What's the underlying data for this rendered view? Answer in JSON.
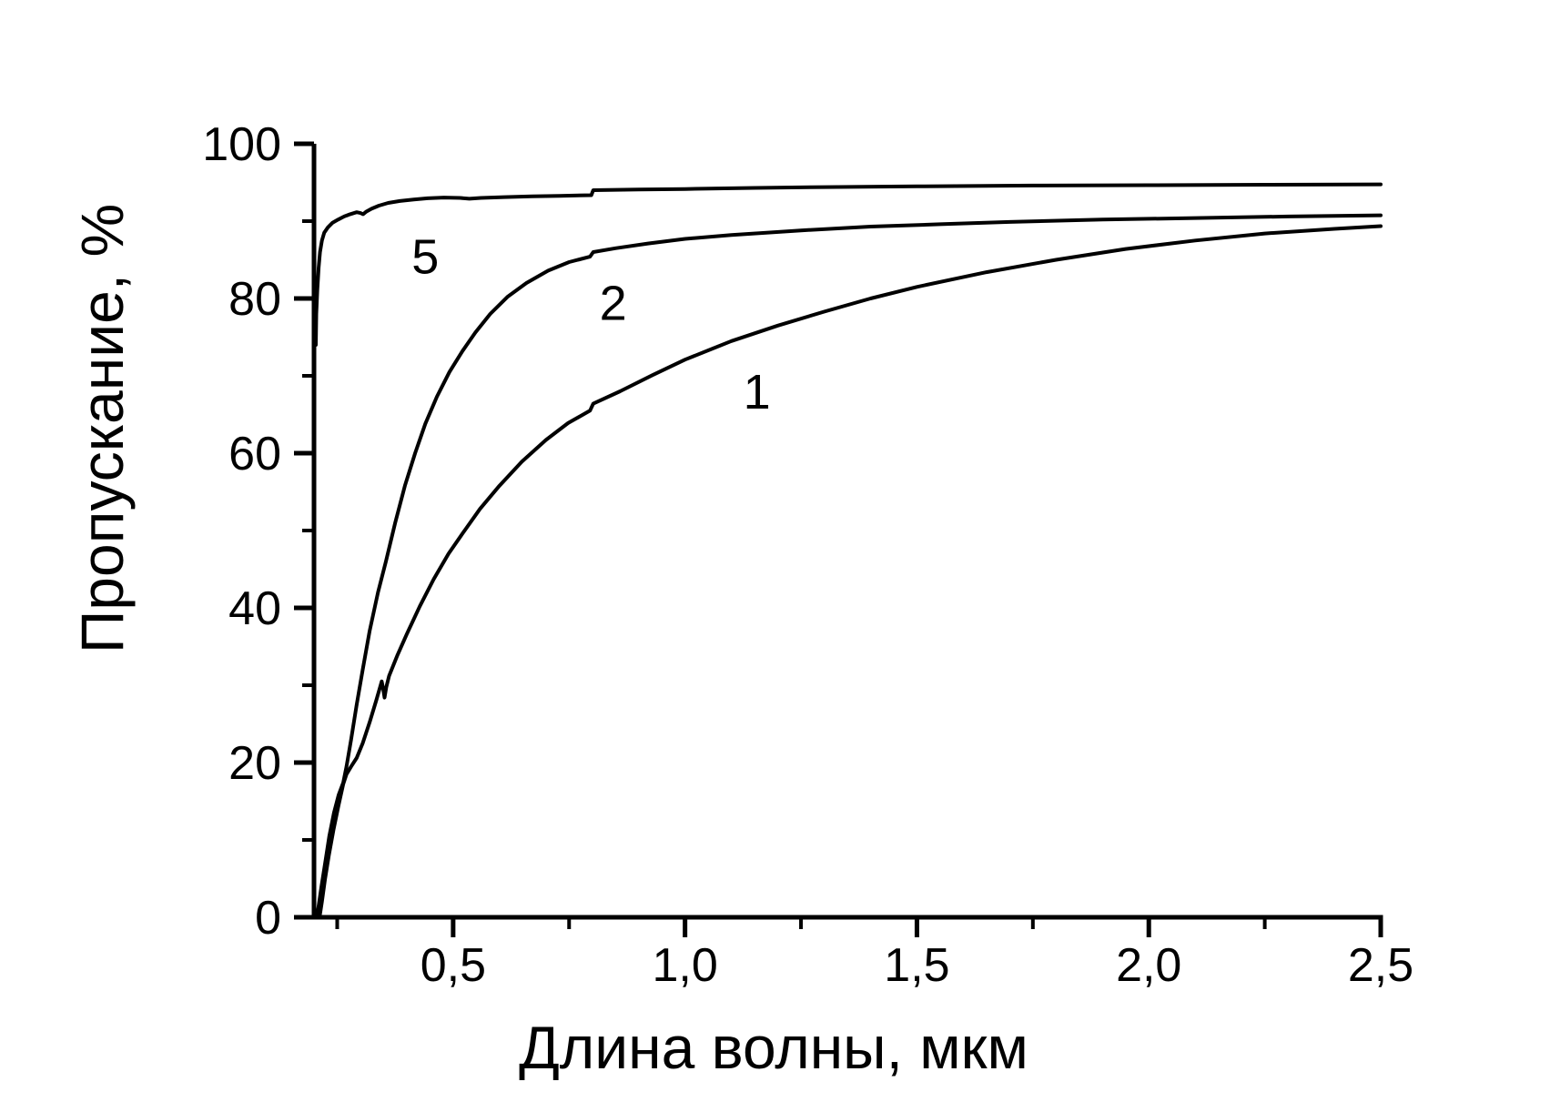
{
  "chart_data": {
    "type": "line",
    "title": "",
    "xlabel": "Длина волны, мкм",
    "ylabel": "Пропускание, %",
    "xlim": [
      0.2,
      2.5
    ],
    "ylim": [
      0,
      100
    ],
    "grid": false,
    "legend": "none",
    "background_color": "#ffffff",
    "axis_color": "#000000",
    "curve_color": "#000000",
    "x_major_ticks": [
      0.5,
      1.0,
      1.5,
      2.0,
      2.5
    ],
    "x_major_tick_labels": [
      "0,5",
      "1,0",
      "1,5",
      "2,0",
      "2,5"
    ],
    "x_minor_ticks": [
      0.25,
      0.75,
      1.25,
      1.75,
      2.25
    ],
    "y_major_ticks": [
      0,
      20,
      40,
      60,
      80,
      100
    ],
    "y_major_tick_labels": [
      "0",
      "20",
      "40",
      "60",
      "80",
      "100"
    ],
    "y_minor_ticks": [
      10,
      30,
      50,
      70,
      90
    ],
    "series": [
      {
        "name": "curve-5",
        "label": "5",
        "label_pos": [
          0.44,
          85.5
        ],
        "points": [
          [
            0.204,
            74
          ],
          [
            0.205,
            78
          ],
          [
            0.207,
            81
          ],
          [
            0.21,
            84
          ],
          [
            0.213,
            86
          ],
          [
            0.217,
            87.5
          ],
          [
            0.222,
            88.5
          ],
          [
            0.23,
            89.2
          ],
          [
            0.24,
            89.8
          ],
          [
            0.252,
            90.2
          ],
          [
            0.265,
            90.6
          ],
          [
            0.278,
            90.9
          ],
          [
            0.292,
            91.15
          ],
          [
            0.3,
            91.05
          ],
          [
            0.306,
            90.9
          ],
          [
            0.312,
            91.2
          ],
          [
            0.324,
            91.6
          ],
          [
            0.34,
            92.0
          ],
          [
            0.36,
            92.35
          ],
          [
            0.385,
            92.6
          ],
          [
            0.415,
            92.8
          ],
          [
            0.445,
            92.95
          ],
          [
            0.48,
            93.05
          ],
          [
            0.515,
            93.0
          ],
          [
            0.535,
            92.9
          ],
          [
            0.56,
            93.0
          ],
          [
            0.61,
            93.1
          ],
          [
            0.67,
            93.2
          ],
          [
            0.73,
            93.27
          ],
          [
            0.798,
            93.35
          ],
          [
            0.802,
            94.0
          ],
          [
            0.9,
            94.08
          ],
          [
            1.0,
            94.15
          ],
          [
            1.15,
            94.3
          ],
          [
            1.3,
            94.4
          ],
          [
            1.5,
            94.5
          ],
          [
            1.75,
            94.6
          ],
          [
            2.0,
            94.65
          ],
          [
            2.25,
            94.7
          ],
          [
            2.5,
            94.75
          ]
        ]
      },
      {
        "name": "curve-2",
        "label": "2",
        "label_pos": [
          0.845,
          79.5
        ],
        "points": [
          [
            0.206,
            0
          ],
          [
            0.21,
            1.5
          ],
          [
            0.216,
            4
          ],
          [
            0.224,
            7
          ],
          [
            0.233,
            10.5
          ],
          [
            0.243,
            13.5
          ],
          [
            0.253,
            15.8
          ],
          [
            0.263,
            17.4
          ],
          [
            0.27,
            19.5
          ],
          [
            0.28,
            23
          ],
          [
            0.292,
            27.5
          ],
          [
            0.305,
            32
          ],
          [
            0.32,
            37
          ],
          [
            0.338,
            42
          ],
          [
            0.355,
            46
          ],
          [
            0.375,
            51
          ],
          [
            0.396,
            55.8
          ],
          [
            0.418,
            60
          ],
          [
            0.44,
            63.8
          ],
          [
            0.465,
            67.3
          ],
          [
            0.492,
            70.5
          ],
          [
            0.52,
            73.2
          ],
          [
            0.548,
            75.6
          ],
          [
            0.58,
            78
          ],
          [
            0.617,
            80.2
          ],
          [
            0.658,
            82
          ],
          [
            0.705,
            83.6
          ],
          [
            0.75,
            84.7
          ],
          [
            0.795,
            85.4
          ],
          [
            0.802,
            86.0
          ],
          [
            0.85,
            86.5
          ],
          [
            0.92,
            87.1
          ],
          [
            1.0,
            87.7
          ],
          [
            1.1,
            88.2
          ],
          [
            1.25,
            88.8
          ],
          [
            1.4,
            89.3
          ],
          [
            1.55,
            89.6
          ],
          [
            1.7,
            89.9
          ],
          [
            1.9,
            90.2
          ],
          [
            2.1,
            90.4
          ],
          [
            2.3,
            90.6
          ],
          [
            2.5,
            90.75
          ]
        ]
      },
      {
        "name": "curve-1",
        "label": "1",
        "label_pos": [
          1.155,
          68.0
        ],
        "points": [
          [
            0.212,
            0
          ],
          [
            0.217,
            2
          ],
          [
            0.224,
            5
          ],
          [
            0.232,
            8
          ],
          [
            0.242,
            11.3
          ],
          [
            0.253,
            14.5
          ],
          [
            0.263,
            17.2
          ],
          [
            0.27,
            18.5
          ],
          [
            0.28,
            19.5
          ],
          [
            0.292,
            20.6
          ],
          [
            0.305,
            22.5
          ],
          [
            0.32,
            25.2
          ],
          [
            0.334,
            28
          ],
          [
            0.346,
            30.5
          ],
          [
            0.349,
            29.6
          ],
          [
            0.352,
            28.4
          ],
          [
            0.356,
            29.8
          ],
          [
            0.362,
            31.2
          ],
          [
            0.38,
            33.9
          ],
          [
            0.4,
            36.6
          ],
          [
            0.428,
            40.2
          ],
          [
            0.458,
            43.7
          ],
          [
            0.49,
            47
          ],
          [
            0.52,
            49.6
          ],
          [
            0.558,
            52.8
          ],
          [
            0.6,
            55.8
          ],
          [
            0.648,
            58.9
          ],
          [
            0.7,
            61.7
          ],
          [
            0.748,
            63.9
          ],
          [
            0.795,
            65.5
          ],
          [
            0.802,
            66.4
          ],
          [
            0.86,
            68
          ],
          [
            0.93,
            70.1
          ],
          [
            1.0,
            72.1
          ],
          [
            1.1,
            74.5
          ],
          [
            1.2,
            76.5
          ],
          [
            1.3,
            78.3
          ],
          [
            1.4,
            80
          ],
          [
            1.5,
            81.5
          ],
          [
            1.65,
            83.4
          ],
          [
            1.8,
            85
          ],
          [
            1.95,
            86.4
          ],
          [
            2.1,
            87.5
          ],
          [
            2.25,
            88.4
          ],
          [
            2.4,
            89
          ],
          [
            2.5,
            89.35
          ]
        ]
      }
    ]
  }
}
